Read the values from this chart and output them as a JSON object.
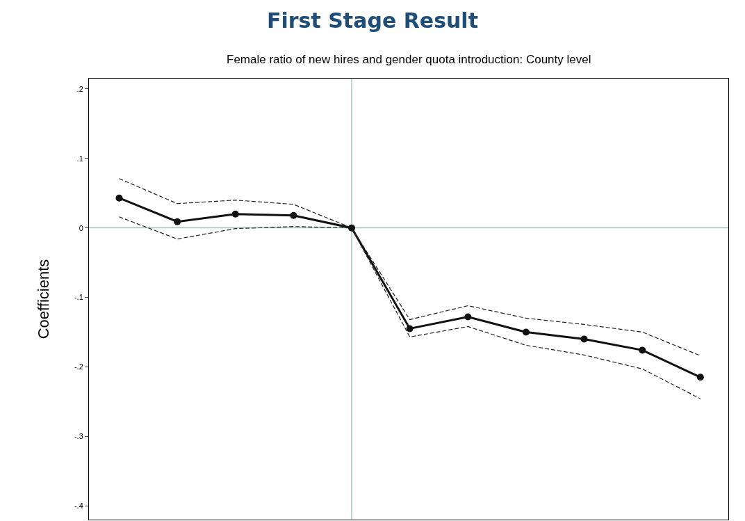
{
  "chart_data": {
    "type": "line",
    "title": "First Stage Result",
    "subtitle": "Female ratio of new hires and gender quota introduction: County level",
    "ylabel": "Coefficients",
    "categories": [
      null,
      null,
      null,
      null,
      null,
      null,
      null,
      null,
      null,
      null,
      null
    ],
    "series": [
      {
        "color": "#111111",
        "marker": "circle",
        "line_style": "solid",
        "values": [
          0.043,
          0.009,
          0.02,
          0.018,
          0,
          -0.145,
          -0.128,
          -0.15,
          -0.16,
          -0.176,
          -0.215
        ]
      },
      {
        "color": "#222222",
        "marker": "none",
        "line_style": "dashed",
        "values": [
          0.071,
          0.035,
          0.04,
          0.034,
          0,
          -0.132,
          -0.112,
          -0.13,
          -0.139,
          -0.15,
          -0.184
        ]
      },
      {
        "color": "#222222",
        "marker": "none",
        "line_style": "dashed",
        "values": [
          0.016,
          -0.016,
          -0.001,
          0.002,
          0,
          -0.157,
          -0.142,
          -0.169,
          -0.183,
          -0.203,
          -0.246
        ]
      }
    ],
    "ylim": [
      -0.42,
      0.215
    ],
    "yticks": [
      {
        "value": 0.2,
        "label": ".2"
      },
      {
        "value": 0.1,
        "label": ".1"
      },
      0,
      {
        "value": -0.1,
        "label": "-.1"
      },
      {
        "value": -0.2,
        "label": "-.2"
      },
      {
        "value": -0.3,
        "label": "-.3"
      },
      {
        "value": -0.4,
        "label": "-.4"
      }
    ],
    "ref_lines": [
      {
        "axis": "y",
        "value": 0,
        "color": "#7fa7a3"
      }
    ],
    "grid": false,
    "tick_labels": "y"
  }
}
